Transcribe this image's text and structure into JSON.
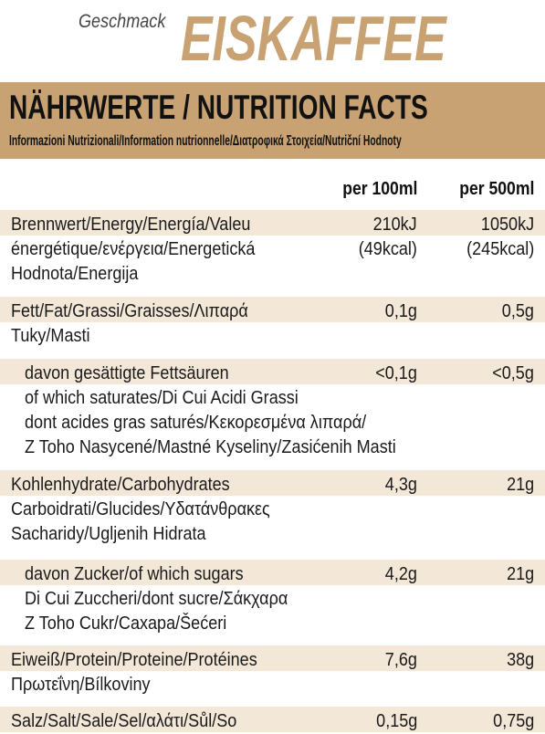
{
  "title": {
    "prefix": "Geschmack",
    "main": "EISKAFFEE"
  },
  "header": {
    "title": "NÄHRWERTE / NUTRITION FACTS",
    "subtitle": "Informazioni Nutrizionali/Information nutrionnelle/Διατροφικά Στοιχεία/Nutriční Hodnoty"
  },
  "columns": {
    "per100": "per 100ml",
    "per500": "per 500ml"
  },
  "rows": [
    {
      "lines": [
        "Brennwert/Energy/Energía/Valeu",
        "énergétique/ενέργεια/Energetická",
        "Hodnota/Energija"
      ],
      "v100": [
        "210kJ",
        "(49kcal)"
      ],
      "v500": [
        "1050kJ",
        "(245kcal)"
      ]
    },
    {
      "lines": [
        "Fett/Fat/Grassi/Graisses/Λιπαρά",
        "Tuky/Masti"
      ],
      "v100": [
        "0,1g"
      ],
      "v500": [
        "0,5g"
      ]
    },
    {
      "lines": [
        "davon gesättigte Fettsäuren",
        "of which saturates/Di Cui Acidi Grassi",
        "dont acides gras saturés/Κεκορεσμένα λιπαρά/",
        "Z Toho Nasycené/Mastné Kyseliny/Zasićenih Masti"
      ],
      "v100": [
        "<0,1g"
      ],
      "v500": [
        "<0,5g"
      ]
    },
    {
      "lines": [
        "Kohlenhydrate/Carbohydrates",
        "Carboidrati/Glucides/Υδατάνθρακες",
        "Sacharidy/Ugljenih Hidrata"
      ],
      "v100": [
        "4,3g"
      ],
      "v500": [
        "21g"
      ]
    },
    {
      "lines": [
        "davon Zucker/of which sugars",
        "Di Cui Zuccheri/dont sucre/Σάκχαρα",
        "Z Toho Cukr/Caxapa/Šećeri"
      ],
      "v100": [
        "4,2g"
      ],
      "v500": [
        "21g"
      ]
    },
    {
      "lines": [
        "Eiweiß/Protein/Proteine/Protéines",
        "Πρωτεΐνη/Bílkoviny"
      ],
      "v100": [
        "7,6g"
      ],
      "v500": [
        "38g"
      ]
    },
    {
      "lines": [
        "Salz/Salt/Sale/Sel/αλάτι/Sůl/So"
      ],
      "v100": [
        "0,15g"
      ],
      "v500": [
        "0,75g"
      ]
    }
  ]
}
